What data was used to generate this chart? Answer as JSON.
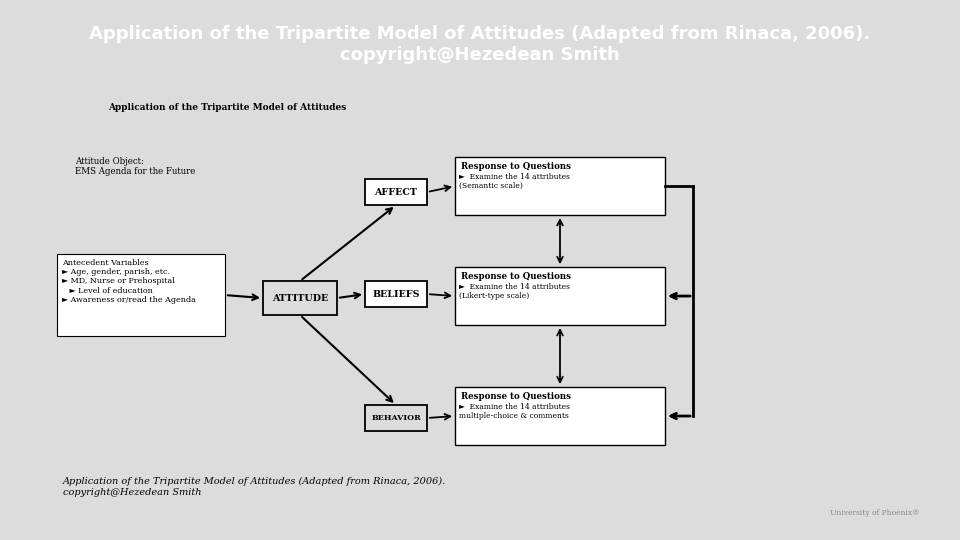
{
  "title_banner": "Application of the Tripartite Model of Attitudes (Adapted from Rinaca, 2006).\ncopyright@Hezedean Smith",
  "title_banner_bg": "#8B1A1A",
  "title_banner_fg": "#FFFFFF",
  "diagram_title": "Application of the Tripartite Model of Attitudes",
  "slide_bg": "#DCDCDC",
  "diagram_bg": "#E8E8E8",
  "attitude_object_text": "Attitude Object:\nEMS Agenda for the Future",
  "antecedent_box_text": "Antecedent Variables\n► Age, gender, parish, etc.\n► MD, Nurse or Prehospital\n   ► Level of education\n► Awareness or/read the Agenda",
  "affect_label": "AFFECT",
  "beliefs_label": "BELIEFS",
  "behavior_label": "BEHAVIOR",
  "attitude_label": "ATTITUDE",
  "response_affect_title": "Response to Questions",
  "response_affect_body": "►  Examine the 14 attributes\n(Semantic scale)",
  "response_beliefs_title": "Response to Questions",
  "response_beliefs_body": "►  Examine the 14 attributes\n(Likert-type scale)",
  "response_behavior_title": "Response to Questions",
  "response_behavior_body": "►  Examine the 14 attributes\nmultiple-choice & comments",
  "caption_text": "Application of the Tripartite Model of Attitudes (Adapted from Rinaca, 2006).\ncopyright@Hezedean Smith",
  "univ_text": "University of Phoenix®"
}
